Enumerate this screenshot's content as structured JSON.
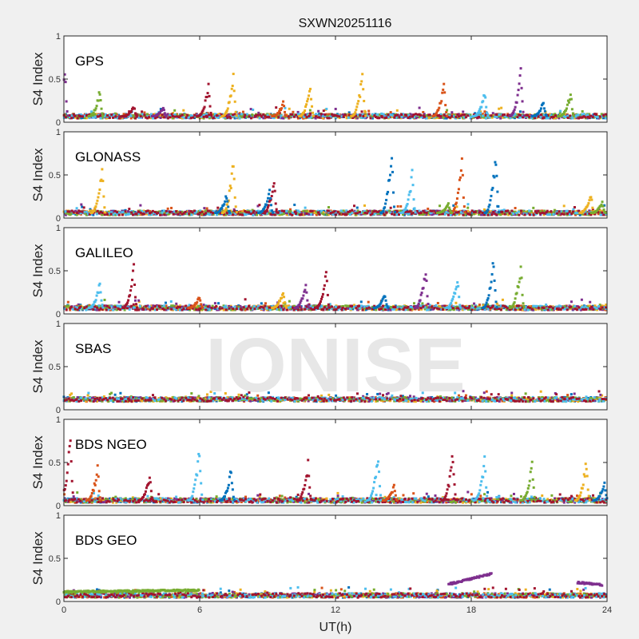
{
  "chart_data": {
    "type": "scatter",
    "title": "SXWN20251116",
    "xlabel": "UT(h)",
    "ylabel": "S4 Index",
    "xlim": [
      0,
      24
    ],
    "ylim": [
      0,
      1
    ],
    "xticks": [
      "0",
      "6",
      "12",
      "18",
      "24"
    ],
    "yticks": [
      "0",
      "0.5",
      "1"
    ],
    "watermark": "IONISE",
    "colors": [
      "#0072BD",
      "#D95319",
      "#EDB120",
      "#7E2F8E",
      "#77AC30",
      "#4DBEEE",
      "#A2142F"
    ],
    "grid": false,
    "panels": [
      {
        "label": "GPS",
        "baseline": 0.07,
        "spikes": [
          [
            3,
            0.05,
            0.72
          ],
          [
            4,
            1.6,
            0.42
          ],
          [
            6,
            6.4,
            0.47
          ],
          [
            2,
            7.5,
            0.65
          ],
          [
            2,
            10.9,
            0.47
          ],
          [
            2,
            13.2,
            0.62
          ],
          [
            1,
            16.8,
            0.5
          ],
          [
            5,
            18.6,
            0.4
          ],
          [
            3,
            20.2,
            0.68
          ],
          [
            4,
            22.4,
            0.4
          ],
          [
            0,
            21.2,
            0.26
          ],
          [
            1,
            9.7,
            0.25
          ],
          [
            6,
            3.1,
            0.2
          ],
          [
            3,
            4.4,
            0.18
          ]
        ]
      },
      {
        "label": "GLONASS",
        "baseline": 0.06,
        "spikes": [
          [
            2,
            1.7,
            0.65
          ],
          [
            2,
            7.5,
            0.78
          ],
          [
            0,
            7.2,
            0.3
          ],
          [
            6,
            9.3,
            0.53
          ],
          [
            0,
            9.1,
            0.35
          ],
          [
            0,
            14.5,
            0.88
          ],
          [
            5,
            15.4,
            0.58
          ],
          [
            1,
            17.6,
            0.75
          ],
          [
            0,
            19.1,
            0.83
          ],
          [
            2,
            23.3,
            0.3
          ],
          [
            4,
            23.8,
            0.2
          ],
          [
            4,
            17.0,
            0.18
          ]
        ]
      },
      {
        "label": "GALILEO",
        "baseline": 0.07,
        "spikes": [
          [
            5,
            1.6,
            0.4
          ],
          [
            6,
            3.1,
            0.6
          ],
          [
            2,
            9.7,
            0.3
          ],
          [
            3,
            10.7,
            0.38
          ],
          [
            6,
            11.6,
            0.55
          ],
          [
            3,
            16.0,
            0.62
          ],
          [
            5,
            17.4,
            0.48
          ],
          [
            0,
            19.0,
            0.72
          ],
          [
            4,
            20.2,
            0.65
          ],
          [
            0,
            14.2,
            0.25
          ],
          [
            1,
            6.0,
            0.22
          ]
        ]
      },
      {
        "label": "SBAS",
        "baseline": 0.12,
        "spikes": []
      },
      {
        "label": "BDS NGEO",
        "baseline": 0.06,
        "spikes": [
          [
            6,
            0.3,
            0.9
          ],
          [
            1,
            1.5,
            0.5
          ],
          [
            5,
            6.0,
            0.77
          ],
          [
            0,
            7.4,
            0.48
          ],
          [
            6,
            10.8,
            0.55
          ],
          [
            5,
            13.9,
            0.65
          ],
          [
            6,
            17.2,
            0.7
          ],
          [
            5,
            18.6,
            0.6
          ],
          [
            4,
            20.7,
            0.55
          ],
          [
            2,
            23.1,
            0.6
          ],
          [
            0,
            23.9,
            0.3
          ],
          [
            6,
            3.8,
            0.4
          ],
          [
            1,
            14.6,
            0.25
          ]
        ]
      },
      {
        "label": "BDS GEO",
        "baseline": 0.07,
        "spikes": [],
        "tracks": [
          {
            "series": 3,
            "t": [
              17.0,
              18.9
            ],
            "s4": [
              0.2,
              0.32
            ]
          },
          {
            "series": 3,
            "t": [
              22.7,
              23.8
            ],
            "s4": [
              0.22,
              0.19
            ]
          },
          {
            "series": 4,
            "t": [
              0.0,
              6.0
            ],
            "s4": [
              0.11,
              0.13
            ]
          }
        ]
      }
    ]
  }
}
